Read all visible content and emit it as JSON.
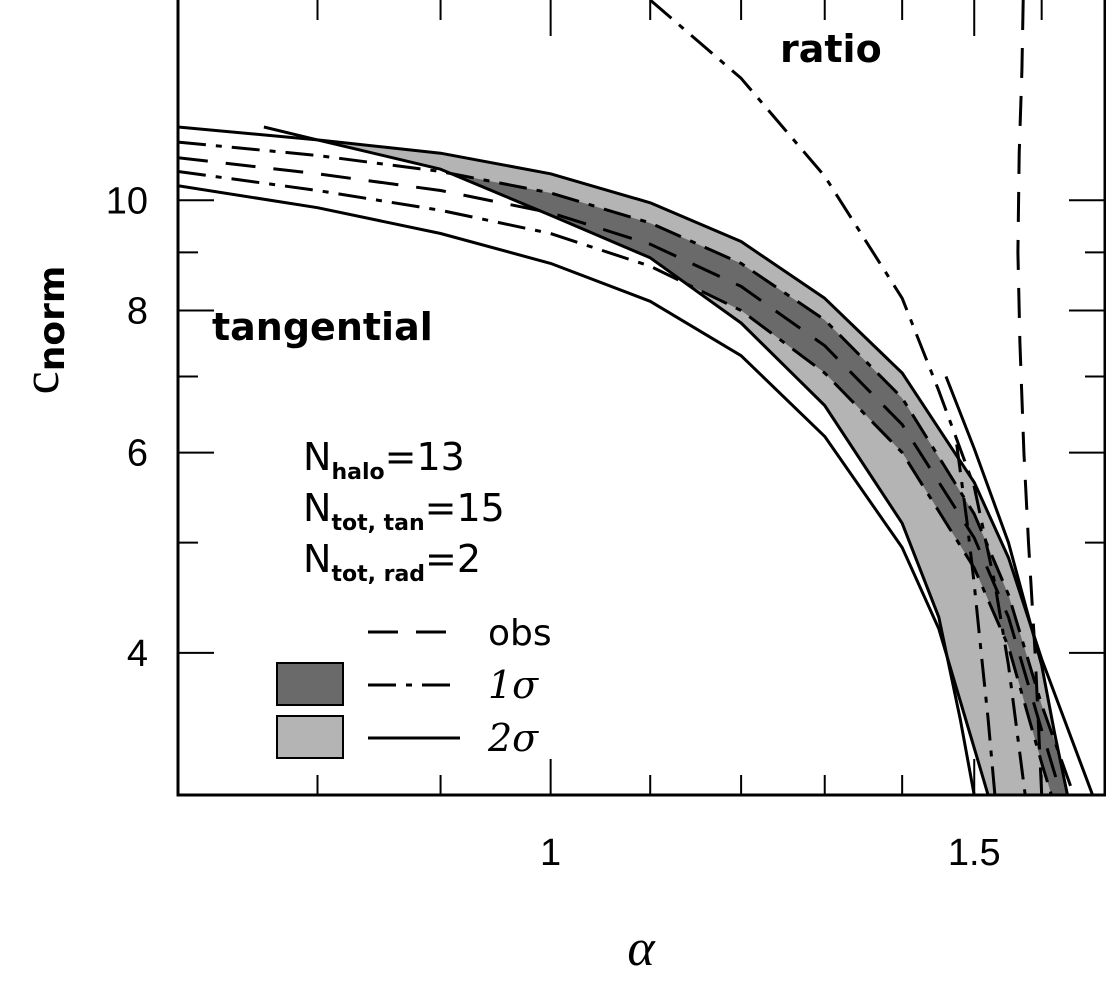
{
  "chart_data": {
    "type": "line",
    "title": "",
    "xlabel": "α",
    "ylabel": "c",
    "ylabel_sub": "norm",
    "xscale": "log",
    "yscale": "log",
    "xlim": [
      0.7,
      1.7
    ],
    "ylim": [
      3.0,
      15.0
    ],
    "x_ticks": [
      {
        "value": 1.0,
        "label": "1"
      },
      {
        "value": 1.5,
        "label": "1.5"
      }
    ],
    "x_minor_ticks": [
      0.8,
      0.9,
      1.1,
      1.2,
      1.3,
      1.4,
      1.6
    ],
    "y_ticks": [
      {
        "value": 4,
        "label": "4"
      },
      {
        "value": 6,
        "label": "6"
      },
      {
        "value": 8,
        "label": "8"
      },
      {
        "value": 10,
        "label": "10"
      }
    ],
    "y_minor_ticks": [
      3,
      5,
      7,
      9
    ],
    "annotations": {
      "tangential": "tangential",
      "ratio": "ratio"
    },
    "info": [
      {
        "main": "N",
        "sub": "halo",
        "value": "=13"
      },
      {
        "main": "N",
        "sub": "tot, tan",
        "value": "=15"
      },
      {
        "main": "N",
        "sub": "tot, rad",
        "value": "=2"
      }
    ],
    "legend": {
      "position": "bottom-left",
      "items": [
        {
          "key": "obs",
          "label": "obs",
          "line": "dashed",
          "swatch": null
        },
        {
          "key": "one_sigma",
          "label": "1σ",
          "line": "dashdot",
          "swatch": "#6a6a6a"
        },
        {
          "key": "two_sigma",
          "label": "2σ",
          "line": "solid",
          "swatch": "#b4b4b4"
        }
      ]
    },
    "colors": {
      "one_sigma_fill": "#6a6a6a",
      "two_sigma_fill": "#b4b4b4",
      "line": "#000000"
    },
    "tangential": {
      "obs": [
        [
          0.7,
          10.9
        ],
        [
          0.8,
          10.55
        ],
        [
          0.9,
          10.2
        ],
        [
          1.0,
          9.75
        ],
        [
          1.1,
          9.15
        ],
        [
          1.2,
          8.4
        ],
        [
          1.3,
          7.45
        ],
        [
          1.4,
          6.35
        ],
        [
          1.5,
          5.05
        ],
        [
          1.55,
          4.3
        ],
        [
          1.6,
          3.42
        ],
        [
          1.63,
          3.0
        ]
      ],
      "sigma1_upper": [
        [
          0.7,
          11.25
        ],
        [
          0.8,
          10.95
        ],
        [
          0.9,
          10.6
        ],
        [
          1.0,
          10.15
        ],
        [
          1.1,
          9.55
        ],
        [
          1.2,
          8.8
        ],
        [
          1.3,
          7.85
        ],
        [
          1.4,
          6.7
        ],
        [
          1.5,
          5.3
        ],
        [
          1.55,
          4.5
        ],
        [
          1.6,
          3.6
        ],
        [
          1.65,
          3.0
        ]
      ],
      "sigma1_lower": [
        [
          0.7,
          10.6
        ],
        [
          0.8,
          10.2
        ],
        [
          0.9,
          9.8
        ],
        [
          1.0,
          9.35
        ],
        [
          1.1,
          8.75
        ],
        [
          1.2,
          8.0
        ],
        [
          1.3,
          7.05
        ],
        [
          1.4,
          6.0
        ],
        [
          1.5,
          4.75
        ],
        [
          1.55,
          4.05
        ],
        [
          1.6,
          3.2
        ],
        [
          1.615,
          3.0
        ]
      ],
      "sigma2_upper": [
        [
          0.7,
          11.6
        ],
        [
          0.8,
          11.3
        ],
        [
          0.9,
          11.0
        ],
        [
          1.0,
          10.55
        ],
        [
          1.1,
          9.95
        ],
        [
          1.2,
          9.2
        ],
        [
          1.3,
          8.2
        ],
        [
          1.4,
          7.05
        ],
        [
          1.5,
          5.65
        ],
        [
          1.55,
          4.85
        ],
        [
          1.6,
          3.95
        ],
        [
          1.68,
          3.0
        ]
      ],
      "sigma2_lower": [
        [
          0.7,
          10.3
        ],
        [
          0.8,
          9.85
        ],
        [
          0.9,
          9.35
        ],
        [
          1.0,
          8.8
        ],
        [
          1.1,
          8.15
        ],
        [
          1.2,
          7.3
        ],
        [
          1.3,
          6.2
        ],
        [
          1.4,
          4.95
        ],
        [
          1.45,
          4.2
        ],
        [
          1.5,
          3.3
        ],
        [
          1.52,
          3.0
        ]
      ]
    },
    "ratio": {
      "obs": [
        [
          1.572,
          15.0
        ],
        [
          1.57,
          13.0
        ],
        [
          1.566,
          11.0
        ],
        [
          1.564,
          9.0
        ],
        [
          1.567,
          7.5
        ],
        [
          1.573,
          6.0
        ],
        [
          1.58,
          5.0
        ],
        [
          1.59,
          4.0
        ],
        [
          1.6,
          3.0
        ]
      ],
      "sigma1_upper": [
        [
          1.1,
          15.0
        ],
        [
          1.2,
          12.8
        ],
        [
          1.3,
          10.5
        ],
        [
          1.4,
          8.2
        ],
        [
          1.45,
          6.8
        ],
        [
          1.5,
          5.6
        ],
        [
          1.53,
          4.6
        ],
        [
          1.55,
          3.9
        ],
        [
          1.575,
          3.0
        ]
      ],
      "sigma1_lower": [
        [
          1.475,
          6.1
        ],
        [
          1.49,
          5.2
        ],
        [
          1.5,
          4.6
        ],
        [
          1.51,
          4.0
        ],
        [
          1.52,
          3.5
        ],
        [
          1.53,
          3.0
        ]
      ],
      "sigma2_upper": [
        [
          1.46,
          7.0
        ],
        [
          1.5,
          6.05
        ],
        [
          1.55,
          5.0
        ],
        [
          1.6,
          3.9
        ],
        [
          1.62,
          3.4
        ],
        [
          1.64,
          3.0
        ]
      ],
      "sigma2_lower": [
        [
          0.76,
          11.6
        ],
        [
          0.8,
          11.3
        ],
        [
          0.9,
          10.65
        ],
        [
          1.0,
          9.7
        ],
        [
          1.1,
          8.9
        ],
        [
          1.2,
          7.8
        ],
        [
          1.3,
          6.6
        ],
        [
          1.4,
          5.2
        ],
        [
          1.45,
          4.3
        ],
        [
          1.48,
          3.5
        ],
        [
          1.5,
          3.0
        ]
      ]
    }
  }
}
